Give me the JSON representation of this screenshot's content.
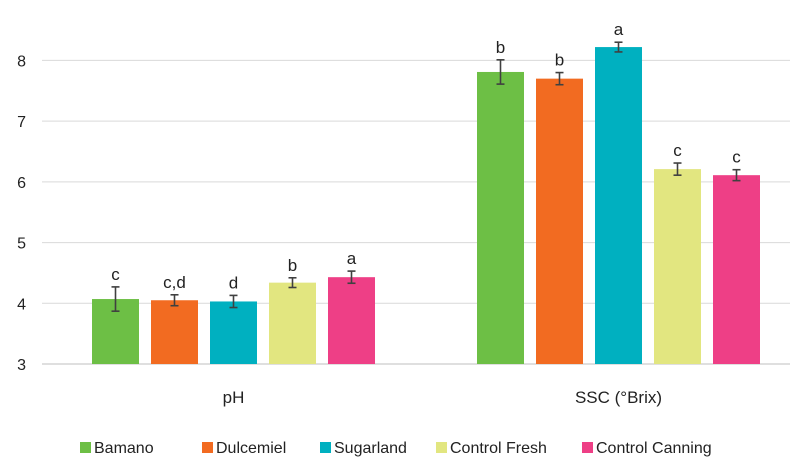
{
  "chart_data": {
    "type": "bar",
    "categories": [
      "pH",
      "SSC (°Brix)"
    ],
    "ylim": [
      3,
      8.6
    ],
    "yticks": [
      3,
      4,
      5,
      6,
      7,
      8
    ],
    "grid": true,
    "legend_position": "bottom",
    "series": [
      {
        "name": "Bamano",
        "color": "#6dbf45",
        "values": [
          4.07,
          7.81
        ],
        "errors": [
          0.2,
          0.2
        ],
        "labels": [
          "c",
          "b"
        ]
      },
      {
        "name": "Dulcemiel",
        "color": "#f26b21",
        "values": [
          4.05,
          7.7
        ],
        "errors": [
          0.09,
          0.1
        ],
        "labels": [
          "c,d",
          "b"
        ]
      },
      {
        "name": "Sugarland",
        "color": "#00b0c0",
        "values": [
          4.03,
          8.22
        ],
        "errors": [
          0.1,
          0.08
        ],
        "labels": [
          "d",
          "a"
        ]
      },
      {
        "name": "Control Fresh",
        "color": "#e2e680",
        "values": [
          4.34,
          6.21
        ],
        "errors": [
          0.08,
          0.1
        ],
        "labels": [
          "b",
          "c"
        ]
      },
      {
        "name": "Control Canning",
        "color": "#ee3f86",
        "values": [
          4.43,
          6.11
        ],
        "errors": [
          0.1,
          0.09
        ],
        "labels": [
          "a",
          "c"
        ]
      }
    ]
  }
}
